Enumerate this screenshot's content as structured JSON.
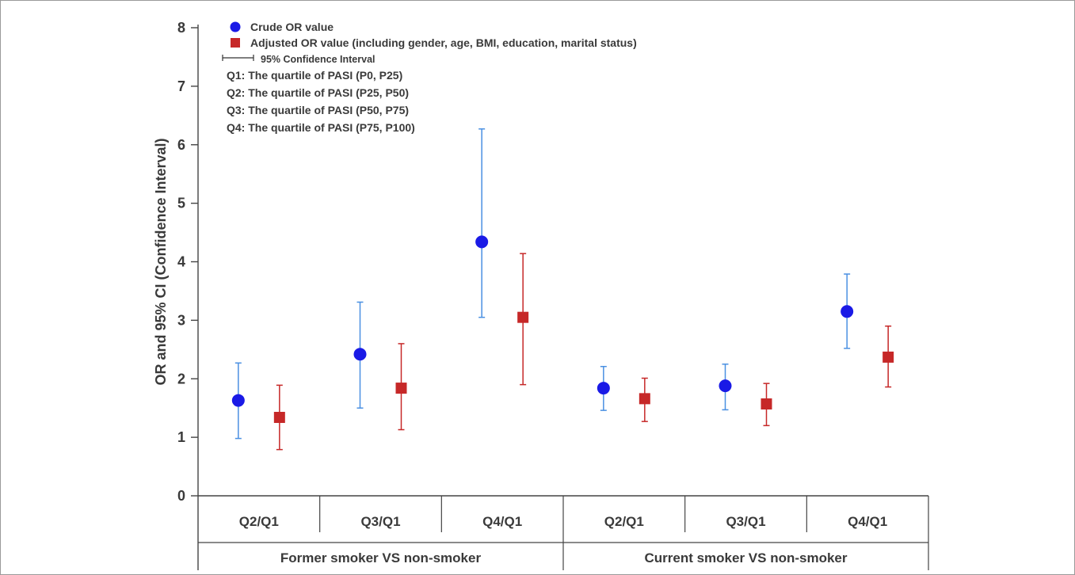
{
  "chart_data": {
    "type": "scatter",
    "title": "",
    "ylabel": "OR and 95% CI (Confidence Interval)",
    "xlabel": "",
    "ylim": [
      0,
      8
    ],
    "yticks": [
      0,
      1,
      2,
      3,
      4,
      5,
      6,
      7,
      8
    ],
    "grid": false,
    "legend_position": "top-left",
    "groups": [
      {
        "label": "Former smoker VS non-smoker",
        "categories": [
          "Q2/Q1",
          "Q3/Q1",
          "Q4/Q1"
        ]
      },
      {
        "label": "Current smoker VS non-smoker",
        "categories": [
          "Q2/Q1",
          "Q3/Q1",
          "Q4/Q1"
        ]
      }
    ],
    "series": [
      {
        "name": "Crude OR value",
        "marker": "circle",
        "color": "#1a1ae6",
        "ci_color": "#4a90e2",
        "values": [
          1.63,
          2.42,
          4.34,
          1.84,
          1.88,
          3.15
        ],
        "ci_low": [
          0.98,
          1.5,
          3.05,
          1.46,
          1.47,
          2.52
        ],
        "ci_high": [
          2.27,
          3.31,
          6.27,
          2.21,
          2.25,
          3.79
        ]
      },
      {
        "name": "Adjusted OR value (including gender, age, BMI, education, marital status)",
        "marker": "square",
        "color": "#c62828",
        "ci_color": "#c62828",
        "values": [
          1.34,
          1.84,
          3.05,
          1.66,
          1.57,
          2.37
        ],
        "ci_low": [
          0.79,
          1.13,
          1.9,
          1.27,
          1.2,
          1.86
        ],
        "ci_high": [
          1.89,
          2.6,
          4.14,
          2.01,
          1.92,
          2.9
        ]
      }
    ],
    "legend_extra": {
      "ci_label": "95% Confidence Interval",
      "notes": [
        "Q1: The quartile of PASI (P0, P25)",
        "Q2: The quartile of PASI (P25, P50)",
        "Q3: The quartile of PASI (P50, P75)",
        "Q4: The quartile of PASI (P75, P100)"
      ]
    }
  }
}
